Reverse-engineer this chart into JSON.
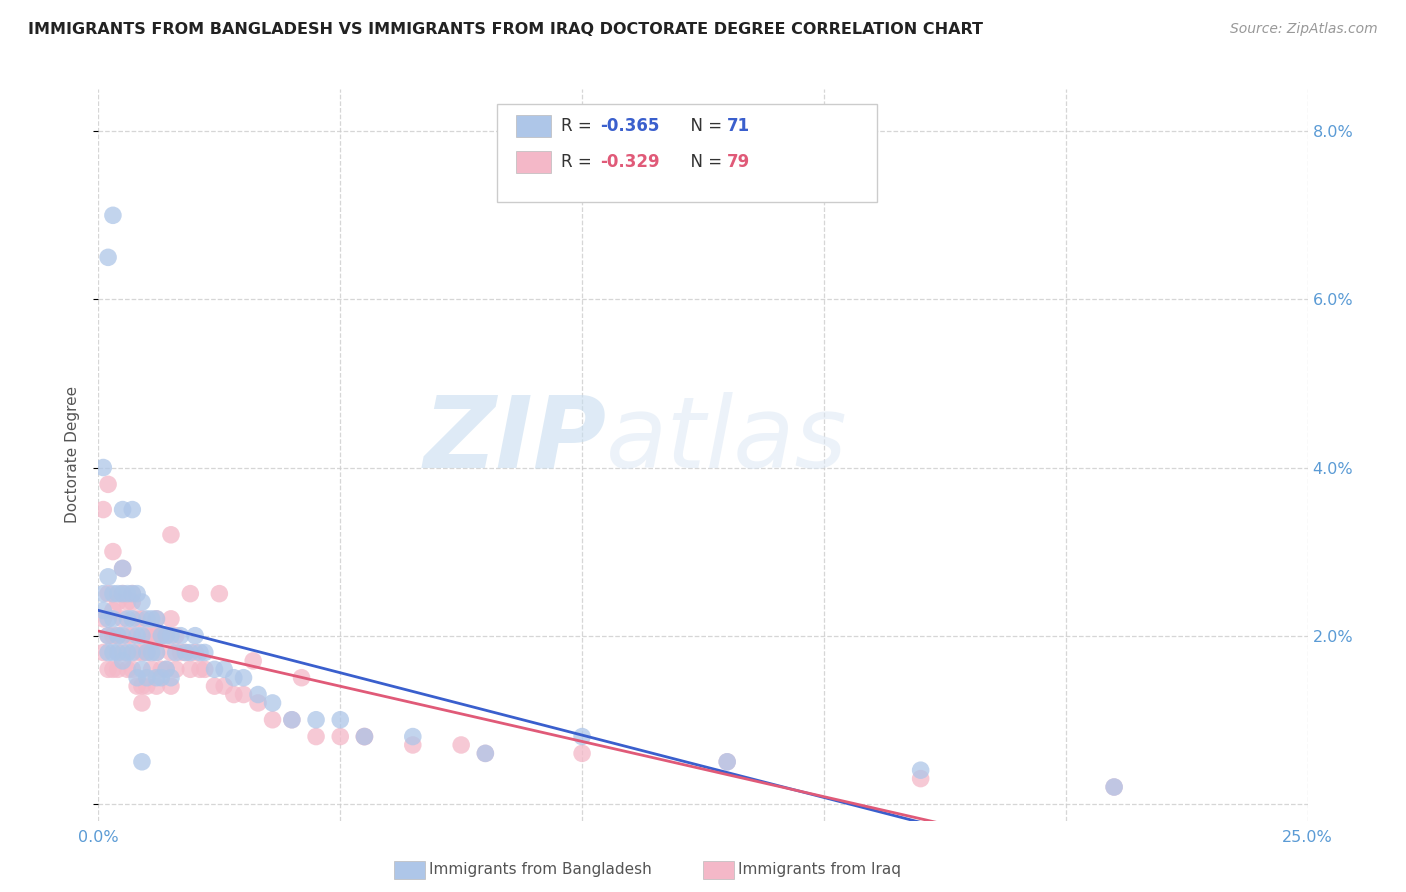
{
  "title": "IMMIGRANTS FROM BANGLADESH VS IMMIGRANTS FROM IRAQ DOCTORATE DEGREE CORRELATION CHART",
  "source": "Source: ZipAtlas.com",
  "ylabel": "Doctorate Degree",
  "xlim": [
    0.0,
    0.25
  ],
  "ylim": [
    -0.002,
    0.085
  ],
  "xticks": [
    0.0,
    0.05,
    0.1,
    0.15,
    0.2,
    0.25
  ],
  "yticks": [
    0.0,
    0.02,
    0.04,
    0.06,
    0.08
  ],
  "xtick_labels": [
    "0.0%",
    "",
    "",
    "",
    "",
    "25.0%"
  ],
  "ytick_labels_right": [
    "",
    "2.0%",
    "4.0%",
    "6.0%",
    "8.0%"
  ],
  "legend_label_bangladesh": "Immigrants from Bangladesh",
  "legend_label_iraq": "Immigrants from Iraq",
  "scatter_color_bangladesh": "#aec6e8",
  "scatter_color_iraq": "#f4b8c8",
  "line_color_bangladesh": "#3a5fcd",
  "line_color_iraq": "#e05a78",
  "background_color": "#ffffff",
  "grid_color": "#cccccc",
  "title_color": "#222222",
  "axis_color": "#5b9bd5",
  "watermark_zip": "ZIP",
  "watermark_atlas": "atlas",
  "R_bangladesh": -0.365,
  "N_bangladesh": 71,
  "R_iraq": -0.329,
  "N_iraq": 79,
  "bangladesh_x": [
    0.001,
    0.001,
    0.002,
    0.002,
    0.002,
    0.002,
    0.003,
    0.003,
    0.003,
    0.004,
    0.004,
    0.004,
    0.005,
    0.005,
    0.005,
    0.005,
    0.006,
    0.006,
    0.006,
    0.007,
    0.007,
    0.007,
    0.008,
    0.008,
    0.008,
    0.009,
    0.009,
    0.009,
    0.01,
    0.01,
    0.01,
    0.011,
    0.011,
    0.012,
    0.012,
    0.012,
    0.013,
    0.013,
    0.014,
    0.014,
    0.015,
    0.015,
    0.016,
    0.017,
    0.018,
    0.019,
    0.02,
    0.021,
    0.022,
    0.024,
    0.026,
    0.028,
    0.03,
    0.033,
    0.036,
    0.04,
    0.045,
    0.05,
    0.055,
    0.065,
    0.08,
    0.1,
    0.13,
    0.17,
    0.21,
    0.001,
    0.002,
    0.003,
    0.005,
    0.007,
    0.009
  ],
  "bangladesh_y": [
    0.025,
    0.023,
    0.027,
    0.022,
    0.02,
    0.018,
    0.025,
    0.022,
    0.018,
    0.025,
    0.02,
    0.018,
    0.028,
    0.025,
    0.02,
    0.017,
    0.025,
    0.022,
    0.018,
    0.025,
    0.022,
    0.018,
    0.025,
    0.02,
    0.015,
    0.024,
    0.02,
    0.016,
    0.022,
    0.018,
    0.015,
    0.022,
    0.018,
    0.022,
    0.018,
    0.015,
    0.02,
    0.015,
    0.02,
    0.016,
    0.02,
    0.015,
    0.018,
    0.02,
    0.018,
    0.018,
    0.02,
    0.018,
    0.018,
    0.016,
    0.016,
    0.015,
    0.015,
    0.013,
    0.012,
    0.01,
    0.01,
    0.01,
    0.008,
    0.008,
    0.006,
    0.008,
    0.005,
    0.004,
    0.002,
    0.04,
    0.065,
    0.07,
    0.035,
    0.035,
    0.005
  ],
  "iraq_x": [
    0.001,
    0.001,
    0.002,
    0.002,
    0.002,
    0.003,
    0.003,
    0.003,
    0.004,
    0.004,
    0.004,
    0.005,
    0.005,
    0.005,
    0.006,
    0.006,
    0.006,
    0.007,
    0.007,
    0.007,
    0.008,
    0.008,
    0.008,
    0.009,
    0.009,
    0.009,
    0.01,
    0.01,
    0.01,
    0.011,
    0.011,
    0.012,
    0.012,
    0.012,
    0.013,
    0.013,
    0.014,
    0.014,
    0.015,
    0.015,
    0.015,
    0.016,
    0.016,
    0.017,
    0.018,
    0.019,
    0.02,
    0.021,
    0.022,
    0.024,
    0.026,
    0.028,
    0.03,
    0.033,
    0.036,
    0.04,
    0.045,
    0.05,
    0.055,
    0.065,
    0.08,
    0.1,
    0.13,
    0.17,
    0.21,
    0.001,
    0.002,
    0.003,
    0.005,
    0.007,
    0.009,
    0.012,
    0.015,
    0.019,
    0.025,
    0.032,
    0.042,
    0.055,
    0.075
  ],
  "iraq_y": [
    0.022,
    0.018,
    0.025,
    0.02,
    0.016,
    0.023,
    0.02,
    0.016,
    0.024,
    0.02,
    0.016,
    0.025,
    0.022,
    0.018,
    0.024,
    0.02,
    0.016,
    0.024,
    0.02,
    0.016,
    0.022,
    0.018,
    0.014,
    0.022,
    0.018,
    0.014,
    0.02,
    0.018,
    0.014,
    0.02,
    0.016,
    0.022,
    0.018,
    0.014,
    0.02,
    0.016,
    0.02,
    0.016,
    0.022,
    0.018,
    0.014,
    0.02,
    0.016,
    0.018,
    0.018,
    0.016,
    0.018,
    0.016,
    0.016,
    0.014,
    0.014,
    0.013,
    0.013,
    0.012,
    0.01,
    0.01,
    0.008,
    0.008,
    0.008,
    0.007,
    0.006,
    0.006,
    0.005,
    0.003,
    0.002,
    0.035,
    0.038,
    0.03,
    0.028,
    0.025,
    0.012,
    0.02,
    0.032,
    0.025,
    0.025,
    0.017,
    0.015,
    0.008,
    0.007
  ]
}
